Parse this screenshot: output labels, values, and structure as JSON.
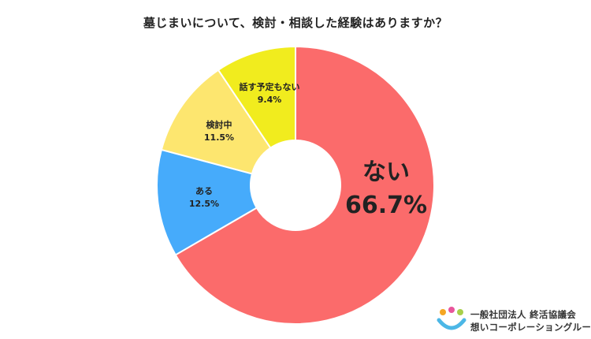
{
  "chart_data": {
    "type": "pie",
    "title": "墓じまいについて、検討・相談した経験はありますか？",
    "donut": true,
    "start_angle_deg": 0,
    "direction": "clockwise",
    "slices": [
      {
        "label": "ない",
        "value": 66.7,
        "value_label": "66.7%",
        "color": "#fb6b6b"
      },
      {
        "label": "ある",
        "value": 12.5,
        "value_label": "12.5%",
        "color": "#46abfb"
      },
      {
        "label": "検討中",
        "value": 11.5,
        "value_label": "11.5%",
        "color": "#fde66f"
      },
      {
        "label": "話す予定もない",
        "value": 9.4,
        "value_label": "9.4%",
        "color": "#f1ec1e"
      }
    ]
  },
  "logo": {
    "line1": "一般社団法人 終活協議会",
    "line2": "想いコーポレーショングループ",
    "colors": [
      "#f5a623",
      "#e8559b",
      "#4cb7e6",
      "#a7cf4a"
    ]
  }
}
